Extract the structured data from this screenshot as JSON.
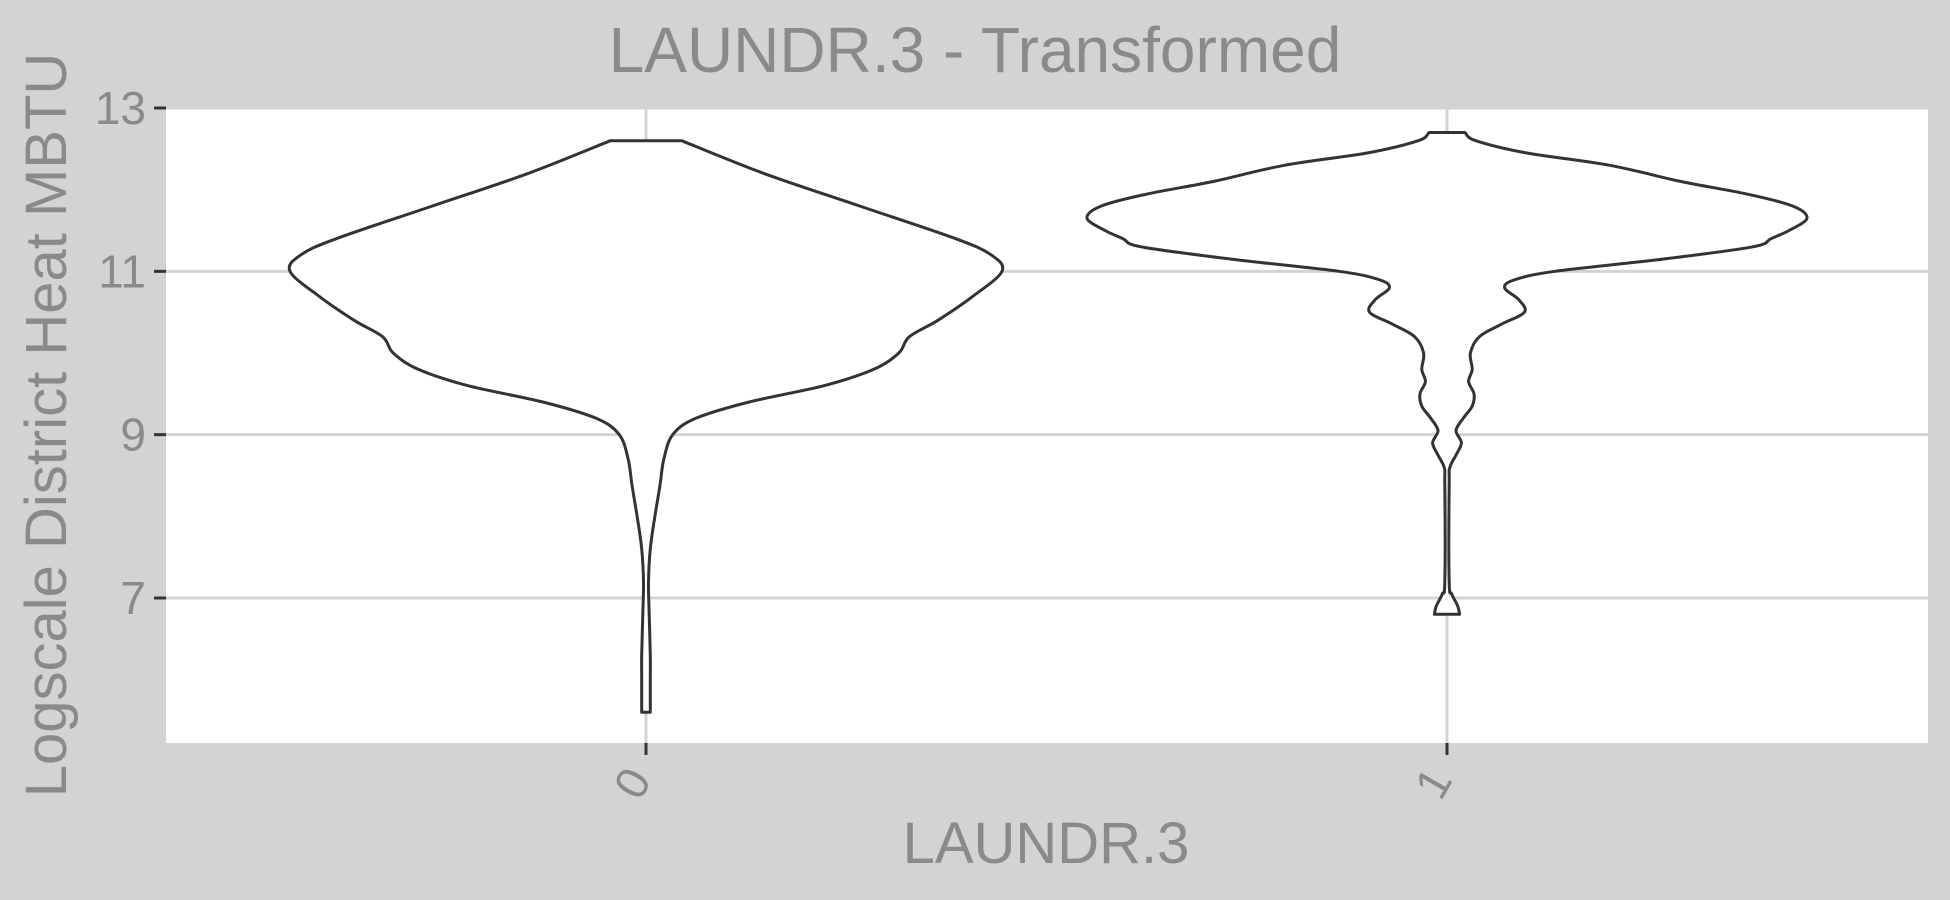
{
  "chart_data": {
    "type": "violin",
    "title": "LAUNDR.3 - Transformed",
    "xlabel": "LAUNDR.3",
    "ylabel": "Logscale District Heat MBTU",
    "categories": [
      "0",
      "1"
    ],
    "ylim": [
      5.25,
      13
    ],
    "yticks": [
      7,
      9,
      11,
      13
    ],
    "grid": true,
    "outline_color": "#333333",
    "violins": [
      {
        "category": "0",
        "y_min": 5.6,
        "y_max": 12.6,
        "density": [
          [
            12.6,
            0.1
          ],
          [
            12.2,
            0.33
          ],
          [
            11.8,
            0.6
          ],
          [
            11.4,
            0.87
          ],
          [
            11.2,
            0.97
          ],
          [
            11.0,
            1.0
          ],
          [
            10.7,
            0.92
          ],
          [
            10.4,
            0.82
          ],
          [
            10.2,
            0.74
          ],
          [
            10.0,
            0.71
          ],
          [
            9.8,
            0.64
          ],
          [
            9.6,
            0.5
          ],
          [
            9.4,
            0.29
          ],
          [
            9.2,
            0.14
          ],
          [
            9.0,
            0.075
          ],
          [
            8.7,
            0.05
          ],
          [
            8.4,
            0.04
          ],
          [
            8.0,
            0.025
          ],
          [
            7.6,
            0.012
          ],
          [
            7.2,
            0.007
          ],
          [
            6.8,
            0.009
          ],
          [
            6.3,
            0.012
          ],
          [
            6.0,
            0.012
          ],
          [
            5.6,
            0.012
          ]
        ]
      },
      {
        "category": "1",
        "y_min": 6.8,
        "y_max": 12.7,
        "density": [
          [
            12.7,
            0.05
          ],
          [
            12.6,
            0.08
          ],
          [
            12.45,
            0.22
          ],
          [
            12.3,
            0.45
          ],
          [
            12.1,
            0.65
          ],
          [
            11.95,
            0.83
          ],
          [
            11.8,
            0.96
          ],
          [
            11.65,
            1.0
          ],
          [
            11.5,
            0.95
          ],
          [
            11.4,
            0.9
          ],
          [
            11.3,
            0.85
          ],
          [
            11.15,
            0.6
          ],
          [
            11.0,
            0.3
          ],
          [
            10.9,
            0.19
          ],
          [
            10.8,
            0.16
          ],
          [
            10.65,
            0.2
          ],
          [
            10.5,
            0.215
          ],
          [
            10.35,
            0.15
          ],
          [
            10.2,
            0.09
          ],
          [
            10.0,
            0.065
          ],
          [
            9.8,
            0.07
          ],
          [
            9.65,
            0.06
          ],
          [
            9.5,
            0.075
          ],
          [
            9.35,
            0.07
          ],
          [
            9.2,
            0.045
          ],
          [
            9.05,
            0.025
          ],
          [
            8.9,
            0.04
          ],
          [
            8.75,
            0.025
          ],
          [
            8.6,
            0.008
          ],
          [
            8.4,
            0.006
          ],
          [
            7.2,
            0.006
          ],
          [
            7.05,
            0.013
          ],
          [
            6.9,
            0.03
          ],
          [
            6.8,
            0.035
          ]
        ]
      }
    ]
  }
}
